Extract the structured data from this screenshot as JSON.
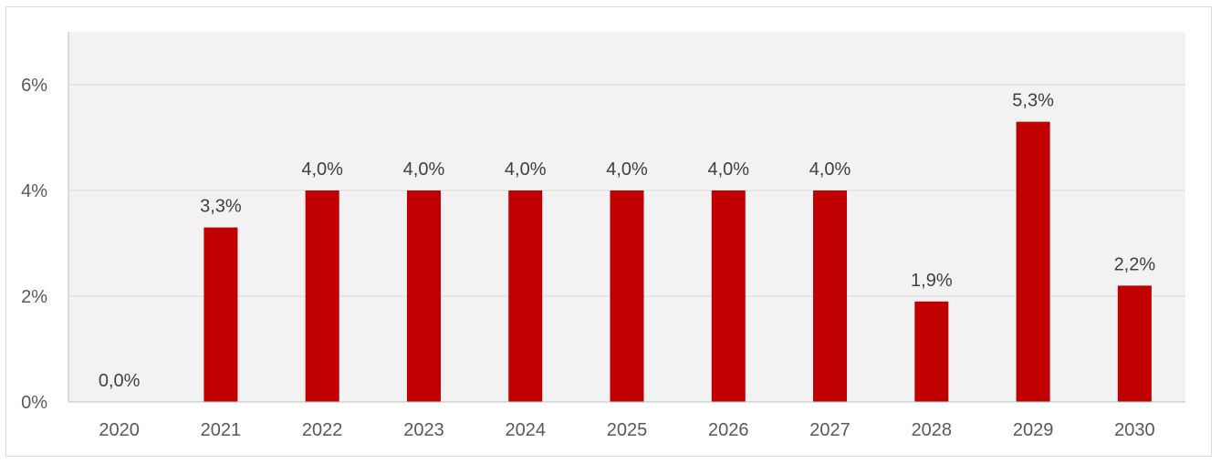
{
  "chart_data": {
    "type": "bar",
    "title": "",
    "xlabel": "",
    "ylabel": "",
    "categories": [
      "2020",
      "2021",
      "2022",
      "2023",
      "2024",
      "2025",
      "2026",
      "2027",
      "2028",
      "2029",
      "2030"
    ],
    "values": [
      0.0,
      3.3,
      4.0,
      4.0,
      4.0,
      4.0,
      4.0,
      4.0,
      1.9,
      5.3,
      2.2
    ],
    "data_labels": [
      "0,0%",
      "3,3%",
      "4,0%",
      "4,0%",
      "4,0%",
      "4,0%",
      "4,0%",
      "4,0%",
      "1,9%",
      "5,3%",
      "2,2%"
    ],
    "y_ticks": [
      0,
      2,
      4,
      6
    ],
    "y_tick_labels": [
      "0%",
      "2%",
      "4%",
      "6%"
    ],
    "ylim": [
      0,
      7
    ],
    "grid": true,
    "legend": "none",
    "colors": {
      "bar": "#c00000",
      "plot_background": "#f2f2f2",
      "gridline": "#d9d9d9",
      "axis": "#bfbfbf"
    }
  }
}
